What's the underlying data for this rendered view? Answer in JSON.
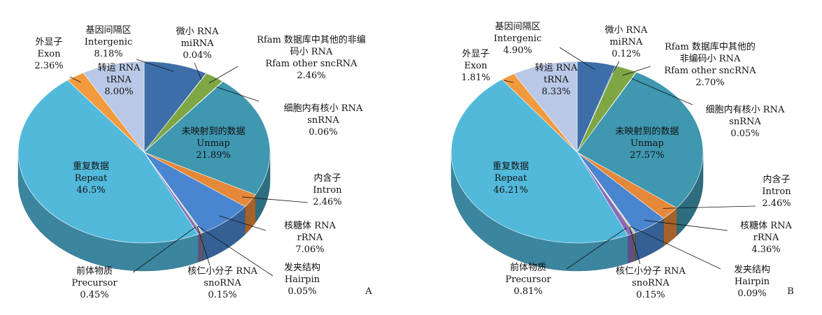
{
  "chart_data": [
    {
      "type": "pie",
      "panel": "A",
      "categories": [
        "Intergenic",
        "miRNA",
        "Rfam other sncRNA",
        "snRNA",
        "Unmap",
        "Intron",
        "rRNA",
        "Hairpin",
        "snoRNA",
        "Precursor",
        "Repeat",
        "Exon",
        "tRNA"
      ],
      "category_labels_zh": [
        "基因间隔区",
        "微小 RNA",
        "Rfam 数据库中其他的非编\n码小 RNA",
        "细胞内有核小 RNA",
        "未映射到的数据",
        "内含子",
        "核糖体 RNA",
        "发夹结构",
        "核仁小分子 RNA",
        "前体物质",
        "重复数据",
        "外显子",
        "转运 RNA"
      ],
      "values": [
        8.18,
        0.04,
        2.46,
        0.06,
        21.89,
        2.46,
        7.06,
        0.05,
        0.15,
        0.45,
        46.5,
        2.36,
        8.0
      ],
      "value_labels": [
        "8.18%",
        "0.04%",
        "2.46%",
        "0.06%",
        "21.89%",
        "2.46%",
        "7.06%",
        "0.05%",
        "0.15%",
        "0.45%",
        "46.5%",
        "2.36%",
        "8.00%"
      ],
      "colors": [
        "#3d6ea8",
        "#2f5d90",
        "#7ea645",
        "#8b5aa6",
        "#3f97b0",
        "#e5883a",
        "#4a85cf",
        "#b04a4a",
        "#8fb04a",
        "#8a6bb8",
        "#52b9db",
        "#f29a3e",
        "#b9c8e6"
      ]
    },
    {
      "type": "pie",
      "panel": "B",
      "categories": [
        "Intergenic",
        "miRNA",
        "Rfam other sncRNA",
        "snRNA",
        "Unmap",
        "Intron",
        "rRNA",
        "Hairpin",
        "snoRNA",
        "Precursor",
        "Repeat",
        "Exon",
        "tRNA"
      ],
      "category_labels_zh": [
        "基因间隔区",
        "微小 RNA",
        "Rfam 数据库中其他的\n非编码小 RNA",
        "细胞内有核小 RNA",
        "未映射到的数据",
        "内含子",
        "核糖体 RNA",
        "发夹结构",
        "核仁小分子 RNA",
        "前体物质",
        "重复数据",
        "外显子",
        "转运 RNA"
      ],
      "values": [
        4.9,
        0.12,
        2.7,
        0.05,
        27.57,
        2.46,
        4.36,
        0.09,
        0.15,
        0.81,
        46.21,
        1.81,
        8.33
      ],
      "value_labels": [
        "4.90%",
        "0.12%",
        "2.70%",
        "0.05%",
        "27.57%",
        "2.46%",
        "4.36%",
        "0.09%",
        "0.15%",
        "0.81%",
        "46.21%",
        "1.81%",
        "8.33%"
      ],
      "colors": [
        "#3d6ea8",
        "#2f5d90",
        "#7ea645",
        "#8b5aa6",
        "#3f97b0",
        "#e5883a",
        "#4a85cf",
        "#b04a4a",
        "#8fb04a",
        "#8a6bb8",
        "#52b9db",
        "#f29a3e",
        "#b9c8e6"
      ]
    }
  ]
}
